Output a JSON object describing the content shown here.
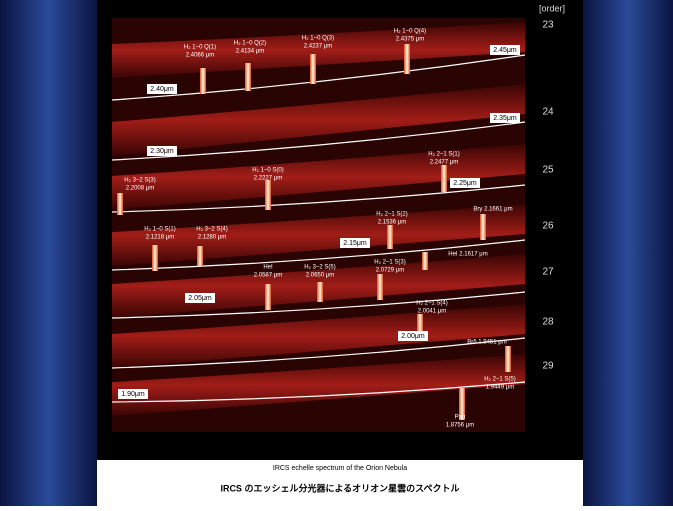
{
  "order_header": "[order]",
  "orders": [
    "23",
    "24",
    "25",
    "26",
    "27",
    "28",
    "29"
  ],
  "markers": [
    "2.45μm",
    "2.40μm",
    "2.35μm",
    "2.30μm",
    "2.25μm",
    "2.15μm",
    "2.05μm",
    "2.00μm",
    "1.90μm"
  ],
  "lines": [
    {
      "label": "H₂ 1−0 Q(1)",
      "sub": "2.4066 μm"
    },
    {
      "label": "H₂ 1−0 Q(2)",
      "sub": "2.4134 μm"
    },
    {
      "label": "H₂ 1−0 Q(3)",
      "sub": "2.4237 μm"
    },
    {
      "label": "H₂ 1−0 Q(4)",
      "sub": "2.4375 μm"
    },
    {
      "label": "H₂ 2−1 S(1)",
      "sub": "2.2477 μm"
    },
    {
      "label": "H₂ 1−0 S(0)",
      "sub": "2.2227 μm"
    },
    {
      "label": "H₂ 3−2 S(3)",
      "sub": "2.2008 μm"
    },
    {
      "label": "H₂ 2−1 S(2)",
      "sub": "2.1536 μm"
    },
    {
      "label": "Brγ 2.1661 μm"
    },
    {
      "label": "H₂ 1−0 S(1)",
      "sub": "2.1218 μm"
    },
    {
      "label": "H₂ 3−2 S(4)",
      "sub": "2.1280 μm"
    },
    {
      "label": "HeI 2.1617 μm"
    },
    {
      "label": "HeI",
      "sub": "2.0587 μm"
    },
    {
      "label": "H₂ 3−2 S(5)",
      "sub": "2.0650 μm"
    },
    {
      "label": "H₂ 2−1 S(3)",
      "sub": "2.0729 μm"
    },
    {
      "label": "H₂ 2−1 S(4)",
      "sub": "2.0041 μm"
    },
    {
      "label": "Brδ 1.9451 μm"
    },
    {
      "label": "H₂ 2−1 S(5)",
      "sub": "1.9449 μm"
    },
    {
      "label": "Paα",
      "sub": "1.8756 μm"
    }
  ],
  "caption": {
    "en": "IRCS echelle spectrum of the Orion Nebula",
    "ja": "IRCS のエッシェル分光器によるオリオン星雲のスペクトル"
  }
}
